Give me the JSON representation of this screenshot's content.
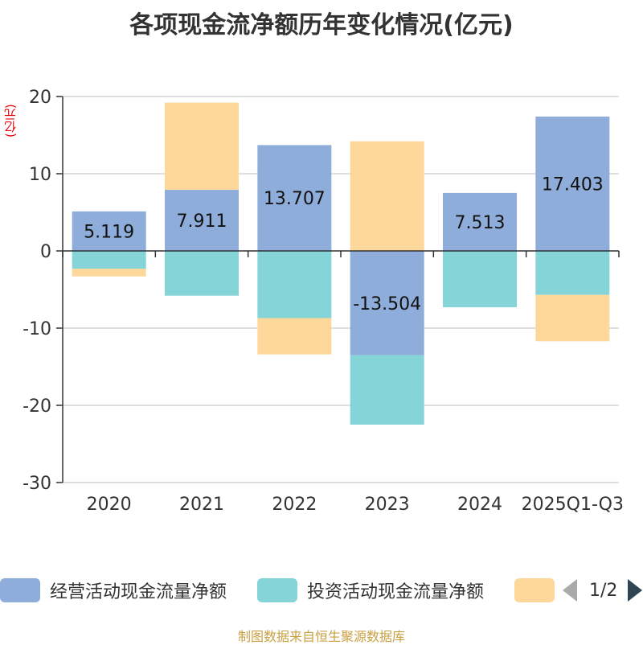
{
  "title": "各项现金流净额历年变化情况(亿元)",
  "unit_label": "(亿元)",
  "source": "制图数据来自恒生聚源数据库",
  "legend": {
    "page_indicator": "1/2"
  },
  "colors": {
    "operating": "#8eadda",
    "investing": "#85d5d8",
    "financing": "#fed89a",
    "unit_label": "#e8000d",
    "source": "#c9a043"
  },
  "chart_data": {
    "type": "bar",
    "stacked": true,
    "title": "各项现金流净额历年变化情况(亿元)",
    "ylabel": "(亿元)",
    "ylim": [
      -30,
      20
    ],
    "yticks": [
      20,
      10,
      0,
      -10,
      -20,
      -30
    ],
    "grid": true,
    "legend_position": "bottom",
    "categories": [
      "2020",
      "2021",
      "2022",
      "2023",
      "2024",
      "2025Q1-Q3"
    ],
    "series": [
      {
        "name": "经营活动现金流量净额",
        "values": [
          5.119,
          7.911,
          13.707,
          -13.504,
          7.513,
          17.403
        ],
        "show_labels": true,
        "labels": [
          "5.119",
          "7.911",
          "13.707",
          "-13.504",
          "7.513",
          "17.403"
        ]
      },
      {
        "name": "投资活动现金流量净额",
        "values": [
          -2.3,
          -5.8,
          -8.7,
          -9.0,
          -7.3,
          -5.7
        ]
      },
      {
        "name": "",
        "values": [
          -1.0,
          11.3,
          -4.7,
          14.2,
          0,
          -6.0
        ]
      }
    ]
  }
}
